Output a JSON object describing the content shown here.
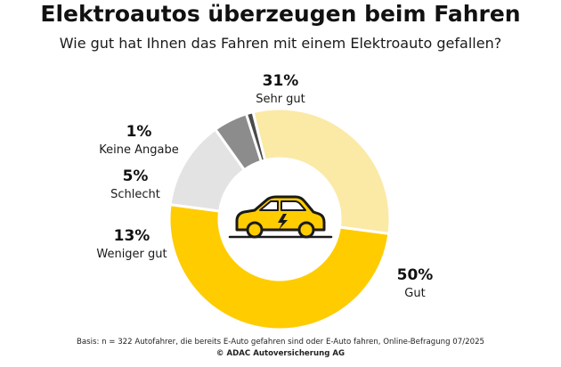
{
  "title": "Elektroautos überzeugen beim Fahren",
  "subtitle": "Wie gut hat Ihnen das Fahren mit einem Elektroauto gefallen?",
  "footnote": "Basis: n = 322 Autofahrer, die bereits E-Auto gefahren sind oder E-Auto fahren, Online-Befragung 07/2025",
  "copyright": "© ADAC Autoversicherung AG",
  "center_icon": "electric-car-icon",
  "chart_data": {
    "type": "pie",
    "variant": "donut",
    "title": "Elektroautos überzeugen beim Fahren",
    "subtitle": "Wie gut hat Ihnen das Fahren mit einem Elektroauto gefallen?",
    "unit": "%",
    "slices": [
      {
        "label": "Sehr gut",
        "value": 31,
        "value_label": "31%",
        "color": "#fbe9a6"
      },
      {
        "label": "Gut",
        "value": 50,
        "value_label": "50%",
        "color": "#ffcc00"
      },
      {
        "label": "Weniger gut",
        "value": 13,
        "value_label": "13%",
        "color": "#e3e3e3"
      },
      {
        "label": "Schlecht",
        "value": 5,
        "value_label": "5%",
        "color": "#8c8c8c"
      },
      {
        "label": "Keine Angabe",
        "value": 1,
        "value_label": "1%",
        "color": "#4a4a4a"
      }
    ],
    "legend": "none",
    "grid": false
  }
}
